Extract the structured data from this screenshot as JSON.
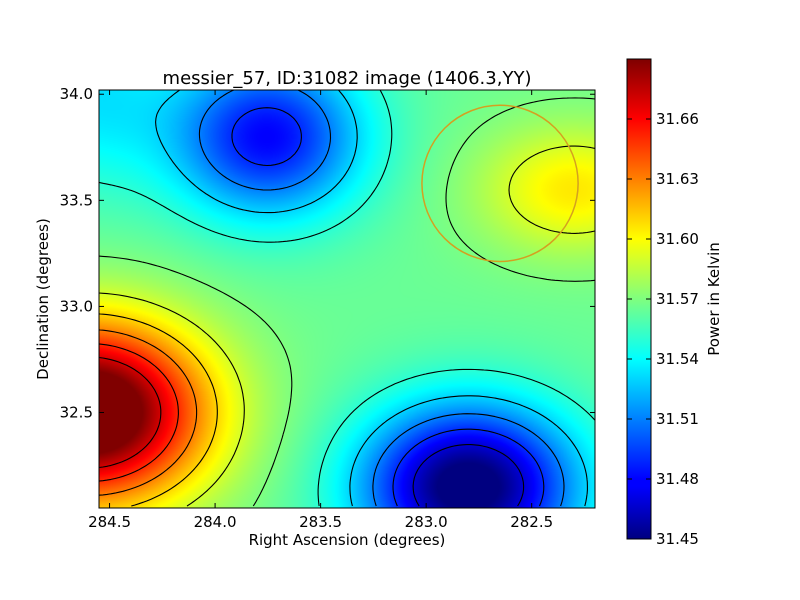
{
  "chart_data": {
    "type": "heatmap",
    "title": "messier_57, ID:31082 image (1406.3,YY)",
    "xlabel": "Right Ascension (degrees)",
    "ylabel": "Declination (degrees)",
    "xlim": [
      284.55,
      282.2
    ],
    "ylim": [
      32.05,
      34.02
    ],
    "x_reversed": true,
    "x_ticks": [
      284.5,
      284.0,
      283.5,
      283.0,
      282.5
    ],
    "x_tick_labels": [
      "284.5",
      "284.0",
      "283.5",
      "283.0",
      "282.5"
    ],
    "y_ticks": [
      32.5,
      33.0,
      33.5,
      34.0
    ],
    "y_tick_labels": [
      "32.5",
      "33.0",
      "33.5",
      "34.0"
    ],
    "colorbar": {
      "label": "Power in Kelvin",
      "range": [
        31.45,
        31.69
      ],
      "ticks": [
        31.45,
        31.48,
        31.51,
        31.54,
        31.57,
        31.6,
        31.63,
        31.66
      ],
      "tick_labels": [
        "31.45",
        "31.48",
        "31.51",
        "31.54",
        "31.57",
        "31.60",
        "31.63",
        "31.66"
      ],
      "colormap": "jet"
    },
    "field_features": [
      {
        "kind": "maximum",
        "ra": 284.5,
        "dec": 32.5,
        "value": 31.68
      },
      {
        "kind": "minimum",
        "ra": 282.85,
        "dec": 32.2,
        "value": 31.45
      },
      {
        "kind": "local_maximum",
        "ra": 282.4,
        "dec": 33.55,
        "value": 31.595
      },
      {
        "kind": "local_minimum",
        "ra": 283.75,
        "dec": 33.75,
        "value": 31.49
      }
    ],
    "contour_levels": [
      31.47,
      31.49,
      31.51,
      31.53,
      31.55,
      31.57,
      31.59,
      31.61,
      31.63,
      31.65,
      31.67
    ],
    "circle": {
      "ra": 282.65,
      "dec": 33.58,
      "radius_deg": 0.37,
      "color": "#d4a020"
    },
    "grid": false,
    "legend": "none"
  }
}
